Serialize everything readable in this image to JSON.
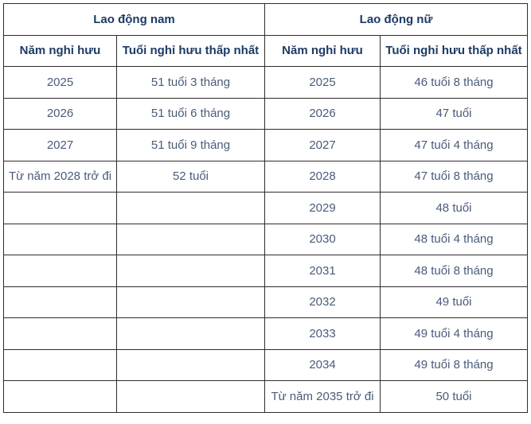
{
  "table": {
    "groups": [
      {
        "label": "Lao động nam"
      },
      {
        "label": "Lao động nữ"
      }
    ],
    "columns": [
      "Năm nghỉ hưu",
      "Tuổi nghỉ hưu thấp nhất",
      "Năm nghỉ hưu",
      "Tuổi nghỉ hưu thấp nhất"
    ],
    "rows": [
      [
        "2025",
        "51 tuổi 3 tháng",
        "2025",
        "46 tuổi 8 tháng"
      ],
      [
        "2026",
        "51 tuổi 6 tháng",
        "2026",
        "47 tuổi"
      ],
      [
        "2027",
        "51 tuổi 9 tháng",
        "2027",
        "47 tuổi 4 tháng"
      ],
      [
        "Từ năm 2028 trở đi",
        "52 tuổi",
        "2028",
        "47 tuổi 8 tháng"
      ],
      [
        "",
        "",
        "2029",
        "48 tuổi"
      ],
      [
        "",
        "",
        "2030",
        "48 tuổi 4 tháng"
      ],
      [
        "",
        "",
        "2031",
        "48 tuổi 8 tháng"
      ],
      [
        "",
        "",
        "2032",
        "49 tuổi"
      ],
      [
        "",
        "",
        "2033",
        "49 tuổi 4 tháng"
      ],
      [
        "",
        "",
        "2034",
        "49 tuổi 8 tháng"
      ],
      [
        "",
        "",
        "Từ năm 2035 trở đi",
        "50 tuổi"
      ]
    ],
    "colors": {
      "border": "#2d2d2d",
      "header_text": "#1d3a66",
      "body_text": "#4a5b7a",
      "background": "#ffffff"
    }
  }
}
